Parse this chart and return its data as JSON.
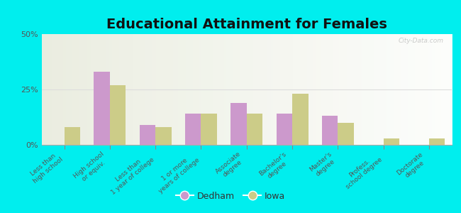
{
  "title": "Educational Attainment for Females",
  "categories": [
    "Less than\nhigh school",
    "High school\nor equiv.",
    "Less than\n1 year of college",
    "1 or more\nyears of college",
    "Associate\ndegree",
    "Bachelor's\ndegree",
    "Master's\ndegree",
    "Profess.\nschool degree",
    "Doctorate\ndegree"
  ],
  "dedham": [
    0.0,
    33.0,
    9.0,
    14.0,
    19.0,
    14.0,
    13.0,
    0.0,
    0.0
  ],
  "iowa": [
    8.0,
    27.0,
    8.0,
    14.0,
    14.0,
    23.0,
    10.0,
    3.0,
    3.0
  ],
  "dedham_color": "#cc99cc",
  "iowa_color": "#cccc88",
  "background_outer": "#00eeee",
  "ylim": [
    0,
    50
  ],
  "yticks": [
    0,
    25,
    50
  ],
  "ytick_labels": [
    "0%",
    "25%",
    "50%"
  ],
  "bar_width": 0.35,
  "title_fontsize": 14,
  "tick_fontsize": 6.5,
  "legend_fontsize": 9,
  "watermark": "City-Data.com"
}
